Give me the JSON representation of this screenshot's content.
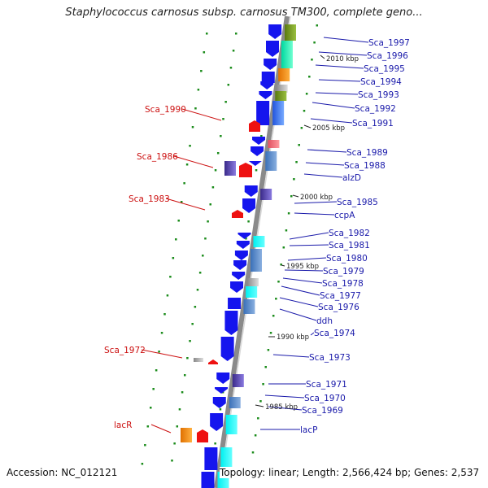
{
  "title": "Staphylococcus carnosus subsp. carnosus TM300, complete geno...",
  "footer": {
    "accession": "Accession: NC_012121",
    "topology": "Topology: linear; Length: 2,566,424 bp; Genes: 2,537"
  },
  "colors": {
    "forward_gene": "#1515ee",
    "reverse_gene": "#ee1111",
    "label_right": "#1a1aaa",
    "label_left": "#cc1111",
    "backbone": "#8a8a8a",
    "tick": "#1c8c1c"
  },
  "right_labels": [
    {
      "text": "Sca_1997"
    },
    {
      "text": "Sca_1996"
    },
    {
      "text": "Sca_1995"
    },
    {
      "text": "Sca_1994"
    },
    {
      "text": "Sca_1993"
    },
    {
      "text": "Sca_1992"
    },
    {
      "text": "Sca_1991"
    },
    {
      "text": "Sca_1989"
    },
    {
      "text": "Sca_1988"
    },
    {
      "text": "alzD"
    },
    {
      "text": "Sca_1985"
    },
    {
      "text": "ccpA"
    },
    {
      "text": "Sca_1982"
    },
    {
      "text": "Sca_1981"
    },
    {
      "text": "Sca_1980"
    },
    {
      "text": "Sca_1979"
    },
    {
      "text": "Sca_1978"
    },
    {
      "text": "Sca_1977"
    },
    {
      "text": "Sca_1976"
    },
    {
      "text": "ddh"
    },
    {
      "text": "Sca_1974"
    },
    {
      "text": "Sca_1973"
    },
    {
      "text": "Sca_1971"
    },
    {
      "text": "Sca_1970"
    },
    {
      "text": "Sca_1969"
    },
    {
      "text": "lacP"
    }
  ],
  "left_labels": [
    {
      "text": "Sca_1990"
    },
    {
      "text": "Sca_1986"
    },
    {
      "text": "Sca_1983"
    },
    {
      "text": "Sca_1972"
    },
    {
      "text": "lacR"
    }
  ],
  "kbp_markers": [
    {
      "text": "2010 kbp"
    },
    {
      "text": "2005 kbp"
    },
    {
      "text": "2000 kbp"
    },
    {
      "text": "1995 kbp"
    },
    {
      "text": "1990 kbp"
    },
    {
      "text": "1985 kbp"
    }
  ]
}
